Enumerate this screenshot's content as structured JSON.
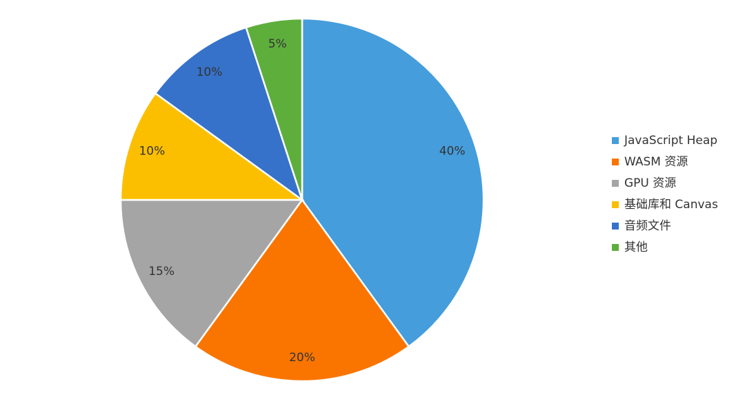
{
  "chart_data": {
    "type": "pie",
    "categories": [
      "JavaScript Heap",
      "WASM 资源",
      "GPU 资源",
      "基础库和 Canvas",
      "音频文件",
      "其他"
    ],
    "values": [
      40,
      20,
      15,
      10,
      10,
      5
    ],
    "value_labels": [
      "40%",
      "20%",
      "15%",
      "10%",
      "10%",
      "5%"
    ],
    "colors": [
      "#459ddb",
      "#f97500",
      "#a5a5a5",
      "#fbbf00",
      "#3672c9",
      "#5eae3c"
    ],
    "legend": "right"
  }
}
